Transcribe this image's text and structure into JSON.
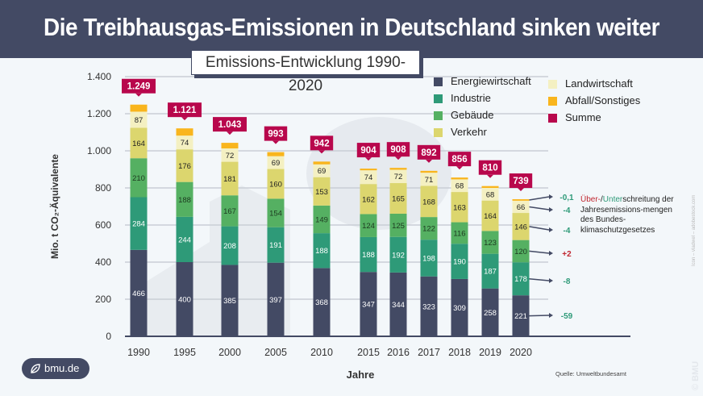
{
  "header": {
    "title": "Die Treibhausgas-Emissionen in Deutschland sinken weiter",
    "subtitle": "Emissions-Entwicklung 1990-2020"
  },
  "note": {
    "part_over": "Über-",
    "slash": "/",
    "part_under": "Unter",
    "rest": "schreitung der Jahresemissions-mengen des Bundes-klimaschutzgesetzes",
    "over_color": "#c0262f",
    "under_color": "#2e9a78"
  },
  "logo": {
    "text": "bmu.de",
    "icon": "leaf-icon"
  },
  "source": "Quelle: Umweltbundesamt",
  "credit": "Icon – vladwel – adobestock.com",
  "copyright": "© BMU",
  "chart_data": {
    "type": "bar",
    "stacked": true,
    "title": "Die Treibhausgas-Emissionen in Deutschland sinken weiter",
    "subtitle": "Emissions-Entwicklung 1990-2020",
    "xlabel": "Jahre",
    "ylabel": "Mio. t CO₂-Äquivalente",
    "ylim": [
      0,
      1400
    ],
    "yticks": [
      0,
      200,
      400,
      600,
      800,
      1000,
      1200,
      1400
    ],
    "ytick_labels": [
      "0",
      "200",
      "400",
      "600",
      "800",
      "1.000",
      "1.200",
      "1.400"
    ],
    "grid": true,
    "legend_position": "top-right",
    "categories": [
      "1990",
      "1995",
      "2000",
      "2005",
      "2010",
      "2015",
      "2016",
      "2017",
      "2018",
      "2019",
      "2020"
    ],
    "series": [
      {
        "name": "Energiewirtschaft",
        "color": "#434a64",
        "label_color": "#ffffff",
        "values": [
          466,
          400,
          385,
          397,
          368,
          347,
          344,
          323,
          309,
          258,
          221
        ]
      },
      {
        "name": "Industrie",
        "color": "#2e9a78",
        "label_color": "#ffffff",
        "values": [
          284,
          244,
          208,
          191,
          188,
          188,
          192,
          198,
          190,
          187,
          178
        ]
      },
      {
        "name": "Gebäude",
        "color": "#55b062",
        "label_color": "#1d3a20",
        "values": [
          210,
          188,
          167,
          154,
          149,
          124,
          125,
          122,
          116,
          123,
          120
        ]
      },
      {
        "name": "Verkehr",
        "color": "#dcd66e",
        "label_color": "#222222",
        "values": [
          164,
          176,
          181,
          160,
          153,
          162,
          165,
          168,
          163,
          164,
          146
        ]
      },
      {
        "name": "Landwirtschaft",
        "color": "#f4f0c2",
        "label_color": "#222222",
        "values": [
          87,
          74,
          72,
          69,
          69,
          74,
          72,
          71,
          68,
          68,
          66
        ]
      },
      {
        "name": "Abfall/Sonstiges",
        "color": "#f9b51d",
        "label_color": "#222222",
        "values": [
          38,
          39,
          30,
          22,
          15,
          9,
          10,
          10,
          10,
          10,
          8
        ],
        "labels_shown": false
      }
    ],
    "totals": {
      "name": "Summe",
      "color": "#b8074c",
      "values": [
        "1.249",
        "1.121",
        "1.043",
        "993",
        "942",
        "904",
        "908",
        "892",
        "856",
        "810",
        "739"
      ]
    },
    "deltas_2020": [
      {
        "series": "Abfall/Sonstiges",
        "value": "-0,1",
        "color": "#2e9a78"
      },
      {
        "series": "Landwirtschaft",
        "value": "-4",
        "color": "#2e9a78"
      },
      {
        "series": "Verkehr",
        "value": "-4",
        "color": "#2e9a78"
      },
      {
        "series": "Gebäude",
        "value": "+2",
        "color": "#c0262f"
      },
      {
        "series": "Industrie",
        "value": "-8",
        "color": "#2e9a78"
      },
      {
        "series": "Energiewirtschaft",
        "value": "-59",
        "color": "#2e9a78"
      }
    ]
  }
}
